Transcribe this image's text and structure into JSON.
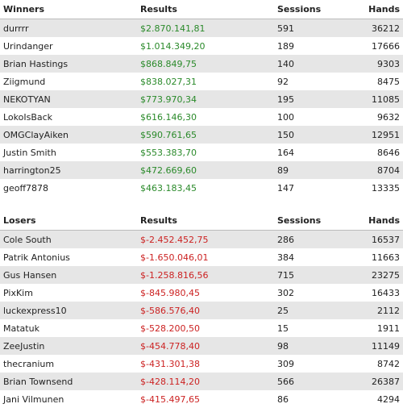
{
  "winners": {
    "headers": [
      "Winners",
      "Results",
      "Sessions",
      "Hands"
    ],
    "rows": [
      [
        "durrrr",
        "$2.870.141,81",
        "591",
        "36212"
      ],
      [
        "Urindanger",
        "$1.014.349,20",
        "189",
        "17666"
      ],
      [
        "Brian Hastings",
        "$868.849,75",
        "140",
        "9303"
      ],
      [
        "Ziigmund",
        "$838.027,31",
        "92",
        "8475"
      ],
      [
        "NEKOTYAN",
        "$773.970,34",
        "195",
        "11085"
      ],
      [
        "LokoIsBack",
        "$616.146,30",
        "100",
        "9632"
      ],
      [
        "OMGClayAiken",
        "$590.761,65",
        "150",
        "12951"
      ],
      [
        "Justin Smith",
        "$553.383,70",
        "164",
        "8646"
      ],
      [
        "harrington25",
        "$472.669,60",
        "89",
        "8704"
      ],
      [
        "geoff7878",
        "$463.183,45",
        "147",
        "13335"
      ]
    ]
  },
  "losers": {
    "headers": [
      "Losers",
      "Results",
      "Sessions",
      "Hands"
    ],
    "rows": [
      [
        "Cole South",
        "$-2.452.452,75",
        "286",
        "16537"
      ],
      [
        "Patrik Antonius",
        "$-1.650.046,01",
        "384",
        "11663"
      ],
      [
        "Gus Hansen",
        "$-1.258.816,56",
        "715",
        "23275"
      ],
      [
        "PixKim",
        "$-845.980,45",
        "302",
        "16433"
      ],
      [
        "luckexpress10",
        "$-586.576,40",
        "25",
        "2112"
      ],
      [
        "Matatuk",
        "$-528.200,50",
        "15",
        "1911"
      ],
      [
        "ZeeJustin",
        "$-454.778,40",
        "98",
        "11149"
      ],
      [
        "thecranium",
        "$-431.301,38",
        "309",
        "8742"
      ],
      [
        "Brian Townsend",
        "$-428.114,20",
        "566",
        "26387"
      ],
      [
        "Jani Vilmunen",
        "$-415.497,65",
        "86",
        "4294"
      ]
    ]
  }
}
